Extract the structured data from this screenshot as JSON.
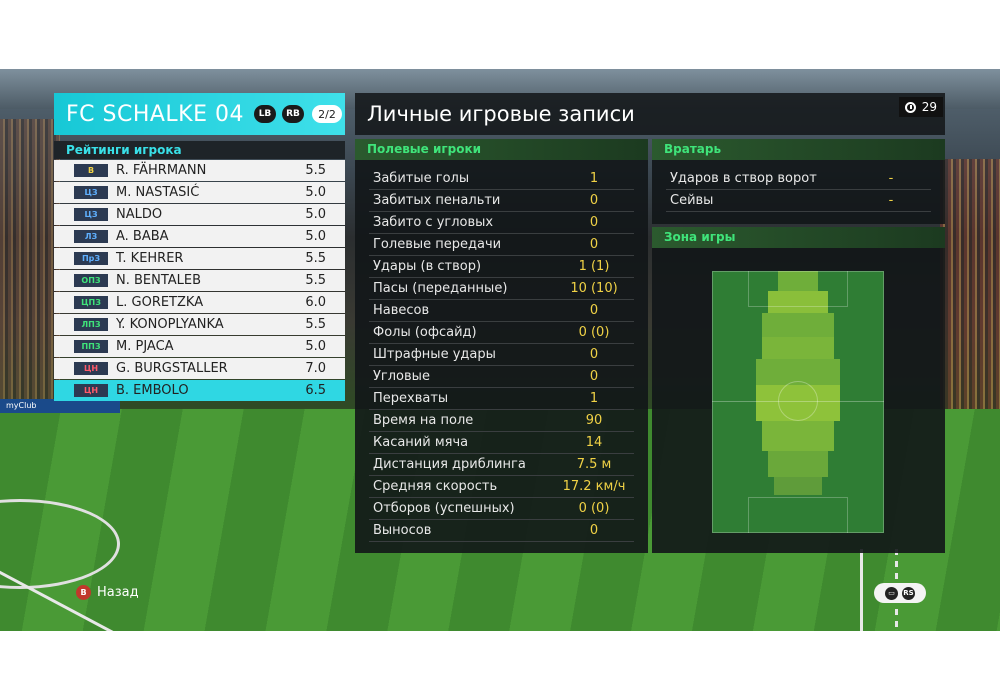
{
  "team": {
    "name": "FC SCHALKE 04",
    "btn_left": "LB",
    "btn_right": "RB",
    "page": "2/2"
  },
  "ratings_header": "Рейтинги игрока",
  "players": [
    {
      "pos": "В",
      "pos_color": "#f0d246",
      "name": "R. FÄHRMANN",
      "rating": "5.5"
    },
    {
      "pos": "ЦЗ",
      "pos_color": "#5fb0ff",
      "name": "M. NASTASIĆ",
      "rating": "5.0"
    },
    {
      "pos": "ЦЗ",
      "pos_color": "#5fb0ff",
      "name": "NALDO",
      "rating": "5.0"
    },
    {
      "pos": "ЛЗ",
      "pos_color": "#5fb0ff",
      "name": "A. BABA",
      "rating": "5.0"
    },
    {
      "pos": "ПрЗ",
      "pos_color": "#5fb0ff",
      "name": "T. KEHRER",
      "rating": "5.5"
    },
    {
      "pos": "ОПЗ",
      "pos_color": "#3fe47a",
      "name": "N. BENTALEB",
      "rating": "5.5"
    },
    {
      "pos": "ЦПЗ",
      "pos_color": "#3fe47a",
      "name": "L. GORETZKA",
      "rating": "6.0"
    },
    {
      "pos": "ЛПЗ",
      "pos_color": "#3fe47a",
      "name": "Y. KONOPLYANKA",
      "rating": "5.5"
    },
    {
      "pos": "ППЗ",
      "pos_color": "#3fe47a",
      "name": "M. PJACA",
      "rating": "5.0"
    },
    {
      "pos": "ЦН",
      "pos_color": "#ff5a6a",
      "name": "G. BURGSTALLER",
      "rating": "7.0"
    },
    {
      "pos": "ЦН",
      "pos_color": "#ff5a6a",
      "name": "B. EMBOLO",
      "rating": "6.5",
      "selected": true
    }
  ],
  "records": {
    "title": "Личные игровые записи",
    "timer": "29",
    "field_header": "Полевые игроки",
    "stats": [
      {
        "label": "Забитые голы",
        "value": "1"
      },
      {
        "label": "Забитых пенальти",
        "value": "0"
      },
      {
        "label": "Забито с угловых",
        "value": "0"
      },
      {
        "label": "Голевые передачи",
        "value": "0"
      },
      {
        "label": "Удары (в створ)",
        "value": "1 (1)"
      },
      {
        "label": "Пасы (переданные)",
        "value": "10 (10)"
      },
      {
        "label": "Навесов",
        "value": "0"
      },
      {
        "label": "Фолы (офсайд)",
        "value": "0 (0)"
      },
      {
        "label": "Штрафные удары",
        "value": "0"
      },
      {
        "label": "Угловые",
        "value": "0"
      },
      {
        "label": "Перехваты",
        "value": "1"
      },
      {
        "label": "Время на поле",
        "value": "90"
      },
      {
        "label": "Касаний мяча",
        "value": "14"
      },
      {
        "label": "Дистанция дриблинга",
        "value": "7.5 м"
      },
      {
        "label": "Средняя скорость",
        "value": "17.2 км/ч"
      },
      {
        "label": "Отборов (успешных)",
        "value": "0 (0)"
      },
      {
        "label": "Выносов",
        "value": "0"
      }
    ],
    "gk_header": "Вратарь",
    "gk_stats": [
      {
        "label": "Ударов в створ ворот",
        "value": "-"
      },
      {
        "label": "Сейвы",
        "value": "-"
      }
    ],
    "zone_header": "Зона игры"
  },
  "bottom": {
    "back_label": "Назад",
    "back_button": "B",
    "right_hint": "RS"
  },
  "stadium": {
    "ad_text": "myClub"
  }
}
